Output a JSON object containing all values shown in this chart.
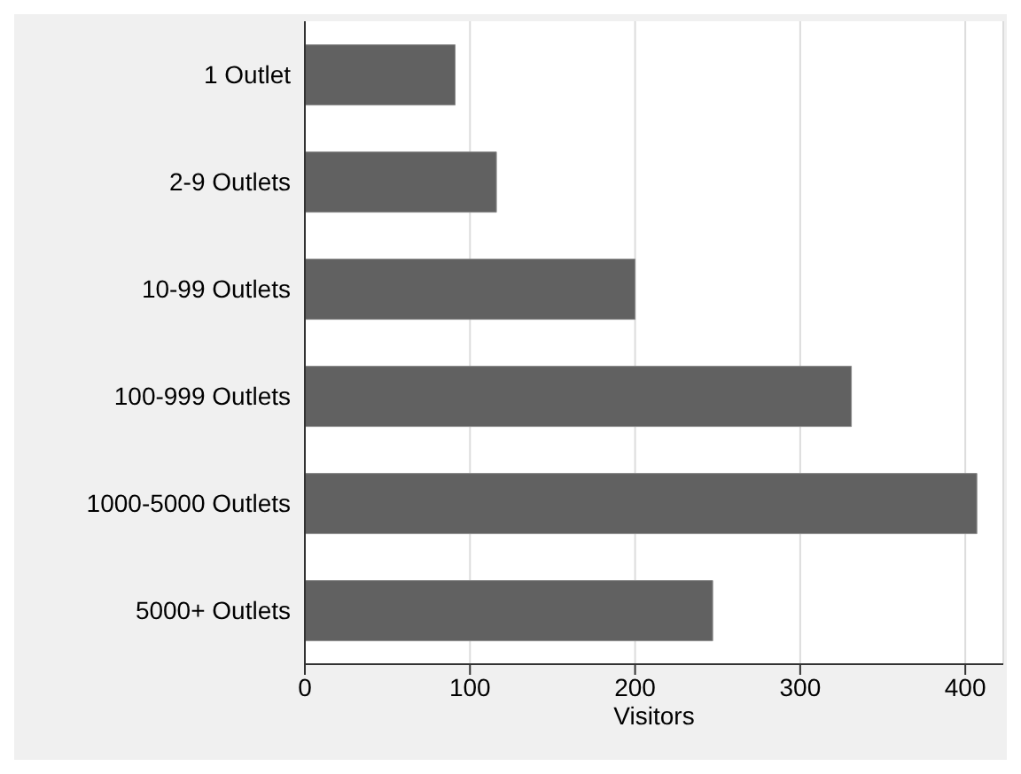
{
  "chart_data": {
    "type": "bar",
    "orientation": "horizontal",
    "xlabel": "Visitors",
    "categories": [
      "1 Outlet",
      "2-9 Outlets",
      "10-99 Outlets",
      "100-999 Outlets",
      "1000-5000 Outlets",
      "5000+ Outlets"
    ],
    "values": [
      91,
      116,
      200,
      331,
      407,
      247
    ],
    "color": "#616161",
    "xlim": [
      0,
      423
    ],
    "xticks": [
      0,
      100,
      200,
      300,
      400
    ],
    "grid": "x"
  }
}
